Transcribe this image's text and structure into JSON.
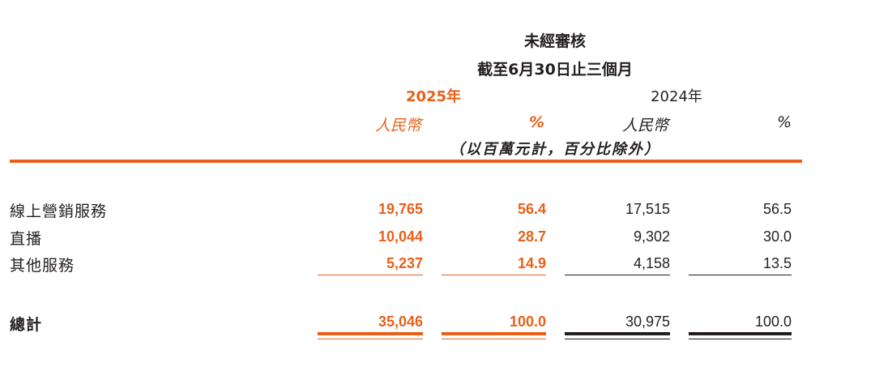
{
  "header": {
    "audit": "未經審核",
    "period": "截至6月30日止三個月",
    "year_current": "2025年",
    "year_prior": "2024年",
    "unit_rmb": "人民幣",
    "unit_pct": "%",
    "note": "（以百萬元計，百分比除外）"
  },
  "rows": [
    {
      "label": "線上營銷服務",
      "rmb_2025": "19,765",
      "pct_2025": "56.4",
      "rmb_2024": "17,515",
      "pct_2024": "56.5"
    },
    {
      "label": "直播",
      "rmb_2025": "10,044",
      "pct_2025": "28.7",
      "rmb_2024": "9,302",
      "pct_2024": "30.0"
    },
    {
      "label": "其他服務",
      "rmb_2025": "5,237",
      "pct_2025": "14.9",
      "rmb_2024": "4,158",
      "pct_2024": "13.5"
    }
  ],
  "total": {
    "label": "總計",
    "rmb_2025": "35,046",
    "pct_2025": "100.0",
    "rmb_2024": "30,975",
    "pct_2024": "100.0"
  },
  "colors": {
    "accent": "#e8611a",
    "text": "#231f20"
  }
}
